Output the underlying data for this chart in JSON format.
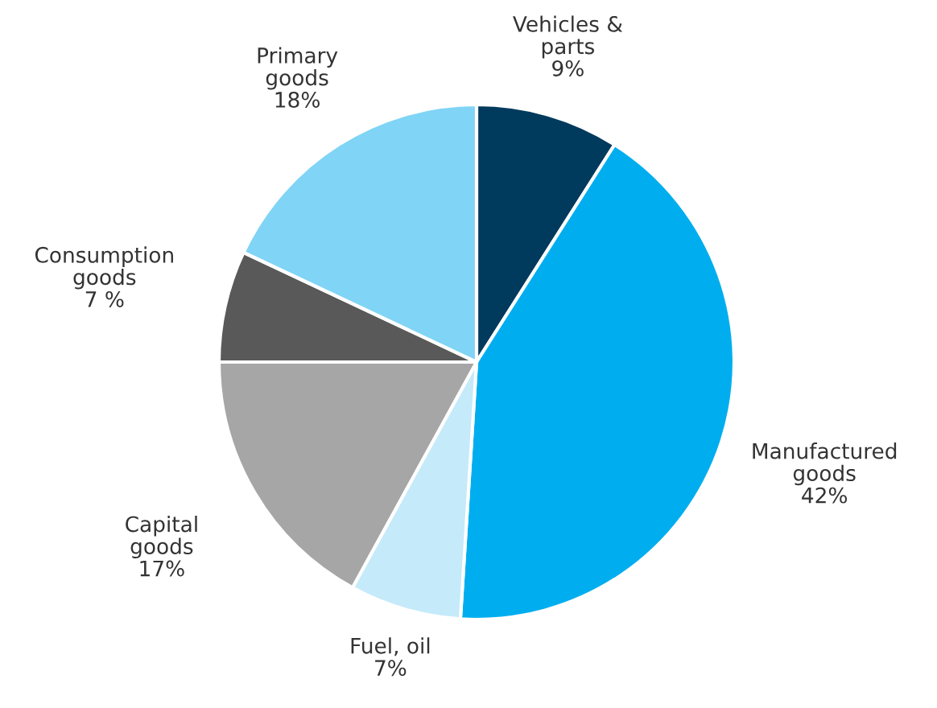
{
  "chart_data": {
    "type": "pie",
    "categories": [
      "Vehicles &\nparts",
      "Manufactured\ngoods",
      "Fuel, oil",
      "Capital\ngoods",
      "Consumption\ngoods",
      "Primary\ngoods"
    ],
    "values": [
      9,
      42,
      7,
      17,
      7,
      18
    ],
    "value_labels": [
      "9%",
      "42%",
      "7%",
      "17%",
      "7 %",
      "18%"
    ],
    "colors": [
      "#003a5d",
      "#00aeef",
      "#c5eafa",
      "#a6a6a6",
      "#595959",
      "#80d4f6"
    ],
    "legend": false
  }
}
